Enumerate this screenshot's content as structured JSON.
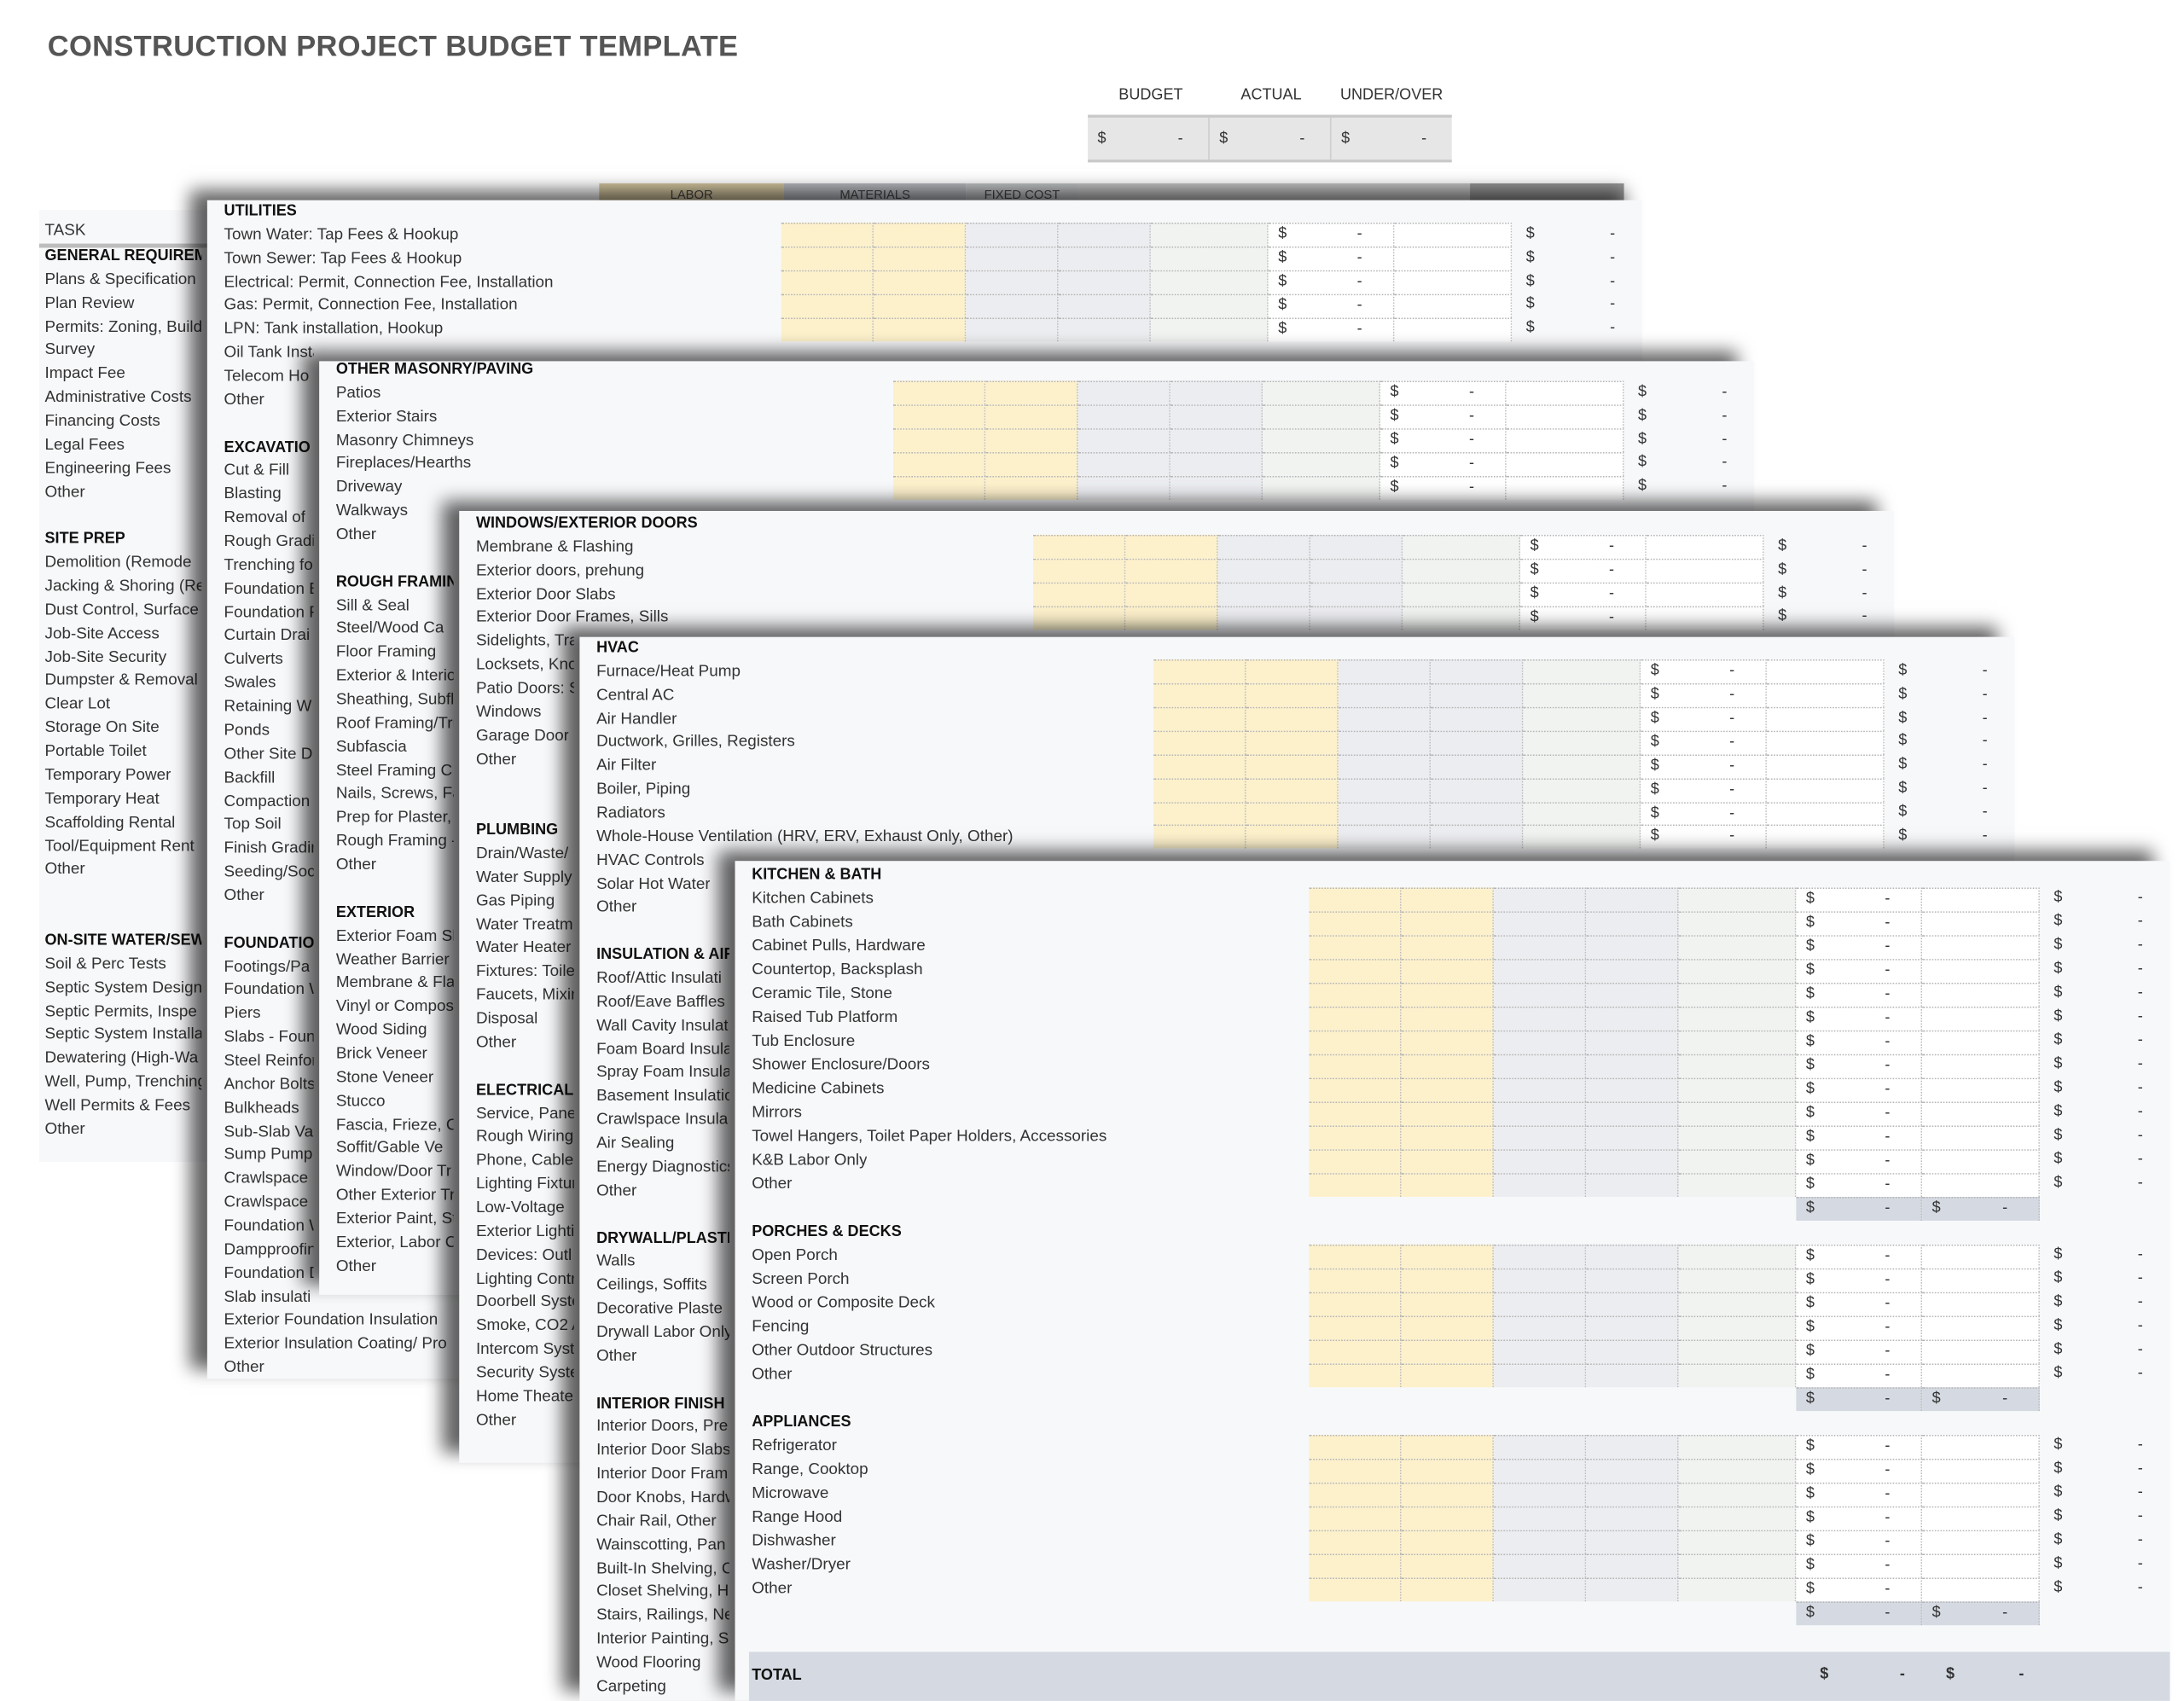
{
  "title": "CONSTRUCTION PROJECT BUDGET TEMPLATE",
  "currency": "$",
  "dash": "-",
  "summary": {
    "labels": [
      "BUDGET",
      "ACTUAL",
      "UNDER/OVER"
    ],
    "values": [
      {
        "cur": "$",
        "val": "-"
      },
      {
        "cur": "$",
        "val": "-"
      },
      {
        "cur": "$",
        "val": "-"
      }
    ]
  },
  "colors": {
    "labor_cell": "#fdf1cc",
    "materials_cell": "#ecedf0",
    "fixed_cell": "#f1f3f1",
    "subtotal": "#d5dae2",
    "sheet_bg": "#f7f8fa"
  },
  "base": {
    "task_label": "TASK",
    "header_labels": [
      "LABOR",
      "MATERIALS",
      "FIXED COST"
    ],
    "rows": [
      {
        "h": "GENERAL REQUIREMEN"
      },
      "Plans & Specification",
      "Plan Review",
      "Permits: Zoning, Buildi",
      "Survey",
      "Impact Fee",
      "Administrative Costs",
      "Financing Costs",
      "Legal Fees",
      "Engineering Fees",
      "Other",
      "",
      {
        "h": "SITE PREP"
      },
      "Demolition (Remode",
      "Jacking & Shoring (Re",
      "Dust Control, Surface",
      "Job-Site Access",
      "Job-Site Security",
      "Dumpster & Removal",
      "Clear Lot",
      "Storage On Site",
      "Portable Toilet",
      "Temporary Power",
      "Temporary Heat",
      "Scaffolding Rental",
      "Tool/Equipment Rent",
      "Other",
      "",
      "",
      {
        "h": "ON-SITE WATER/SEWE"
      },
      "Soil & Perc Tests",
      "Septic System Design",
      "Septic Permits, Inspe",
      "Septic System Installa",
      "Dewatering (High-Wa",
      "Well, Pump, Trenching",
      "Well Permits & Fees",
      "Other"
    ]
  },
  "sheets": [
    {
      "rows": [
        {
          "h": "UTILITIES"
        },
        "Town Water: Tap Fees & Hookup",
        "Town Sewer: Tap Fees & Hookup",
        "Electrical: Permit, Connection Fee, Installation",
        "Gas: Permit, Connection Fee, Installation",
        "LPN: Tank installation, Hookup",
        "Oil Tank Installation",
        "Telecom Ho",
        "Other",
        "",
        {
          "h": "EXCAVATIO"
        },
        "Cut & Fill",
        "Blasting",
        "Removal of",
        "Rough Gradi",
        "Trenching fo",
        "Foundation E",
        "Foundation F",
        "Curtain Drai",
        "Culverts",
        "Swales",
        "Retaining W",
        "Ponds",
        "Other Site D",
        "Backfill",
        "Compaction",
        "Top Soil",
        "Finish Gradin",
        "Seeding/Soc",
        "Other",
        "",
        {
          "h": "FOUNDATIO"
        },
        "Footings/Pa",
        "Foundation W",
        "Piers",
        "Slabs - Foun",
        "Steel Reinfor",
        "Anchor Bolts",
        "Bulkheads",
        "Sub-Slab Va",
        "Sump Pump",
        "Crawlspace",
        "Crawlspace",
        "Foundation W",
        "Dampproofin",
        "Foundation D",
        "Slab insulati",
        "Exterior Foundation Insulation",
        "Exterior Insulation Coating/ Pro",
        "Other"
      ]
    },
    {
      "rows": [
        {
          "h": "OTHER MASONRY/PAVING"
        },
        "Patios",
        "Exterior Stairs",
        "Masonry Chimneys",
        "Fireplaces/Hearths",
        "Driveway",
        "Walkways",
        "Other",
        "",
        {
          "h": "ROUGH FRAMING"
        },
        "Sill & Seal",
        "Steel/Wood Ca",
        "Floor Framing",
        "Exterior & Interio",
        "Sheathing, Subfl",
        "Roof Framing/Tru",
        "Subfascia",
        "Steel Framing C",
        "Nails, Screws, Fa",
        "Prep for Plaster,",
        "Rough Framing -",
        "Other",
        "",
        {
          "h": "EXTERIOR"
        },
        "Exterior Foam Sh",
        "Weather Barrier",
        "Membrane & Fla",
        "Vinyl or Compos",
        "Wood Siding",
        "Brick Veneer",
        "Stone Veneer",
        "Stucco",
        "Fascia, Frieze, C",
        "Soffit/Gable Ve",
        "Window/Door Tr",
        "Other Exterior Tr",
        "Exterior Paint, St",
        "Exterior, Labor C",
        "Other"
      ]
    },
    {
      "rows": [
        {
          "h": "WINDOWS/EXTERIOR DOORS"
        },
        "Membrane & Flashing",
        "Exterior doors, prehung",
        "Exterior Door Slabs",
        "Exterior Door Frames, Sills",
        "Sidelights, Tra",
        "Locksets, Kno",
        "Patio Doors: S",
        "Windows",
        "Garage Door",
        "Other",
        "",
        "",
        {
          "h": "PLUMBING"
        },
        "Drain/Waste/",
        "Water Supply",
        "Gas Piping",
        "Water Treatm",
        "Water Heater",
        "Fixtures: Toilet",
        "Faucets, Mixin",
        "Disposal",
        "Other",
        "",
        {
          "h": "ELECTRICAL"
        },
        "Service, Pane",
        "Rough Wiring",
        "Phone, Cable,",
        "Lighting Fixtur",
        "Low-Voltage",
        "Exterior Lighti",
        "Devices: Outl",
        "Lighting Contr",
        "Doorbell Syste",
        "Smoke, CO2 A",
        "Intercom Syst",
        "Security Syste",
        "Home Theater",
        "Other"
      ]
    },
    {
      "rows": [
        {
          "h": "HVAC"
        },
        "Furnace/Heat Pump",
        "Central AC",
        "Air Handler",
        "Ductwork, Grilles, Registers",
        "Air Filter",
        "Boiler, Piping",
        "Radiators",
        "Whole-House Ventilation (HRV, ERV, Exhaust Only, Other)",
        "HVAC Controls",
        "Solar Hot Water",
        "Other",
        "",
        {
          "h": "INSULATION & AIR-"
        },
        "Roof/Attic Insulati",
        "Roof/Eave Baffles",
        "Wall Cavity Insulat",
        "Foam Board Insula",
        "Spray Foam Insulat",
        "Basement Insulatio",
        "Crawlspace Insula",
        "Air Sealing",
        "Energy Diagnostics",
        "Other",
        "",
        {
          "h": "DRYWALL/PLASTER"
        },
        "Walls",
        "Ceilings, Soffits",
        "Decorative Plaste",
        "Drywall Labor Only",
        "Other",
        "",
        {
          "h": "INTERIOR FINISH"
        },
        "Interior Doors, Pre",
        "Interior Door Slabs",
        "Interior Door Fram",
        "Door Knobs, Hardw",
        "Chair Rail, Other",
        "Wainscotting, Pan",
        "Built-In Shelving, C",
        "Closet Shelving, H",
        "Stairs, Railings, Ne",
        "Interior Painting, S",
        "Wood Flooring",
        "Carpeting"
      ]
    },
    {
      "rows": [
        {
          "h": "KITCHEN & BATH"
        },
        "Kitchen Cabinets",
        "Bath Cabinets",
        "Cabinet Pulls, Hardware",
        "Countertop, Backsplash",
        "Ceramic Tile, Stone",
        "Raised Tub Platform",
        "Tub Enclosure",
        "Shower Enclosure/Doors",
        "Medicine Cabinets",
        "Mirrors",
        "Towel Hangers, Toilet Paper Holders, Accessories",
        "K&B Labor Only",
        "Other",
        {
          "sub": true
        },
        {
          "h": "PORCHES & DECKS"
        },
        "Open Porch",
        "Screen Porch",
        "Wood or Composite Deck",
        "Fencing",
        "Other Outdoor Structures",
        "Other",
        {
          "sub": true
        },
        {
          "h": "APPLIANCES"
        },
        "Refrigerator",
        "Range, Cooktop",
        "Microwave",
        "Range Hood",
        "Dishwasher",
        "Washer/Dryer",
        "Other",
        {
          "sub": true
        }
      ],
      "total_label": "TOTAL"
    }
  ]
}
